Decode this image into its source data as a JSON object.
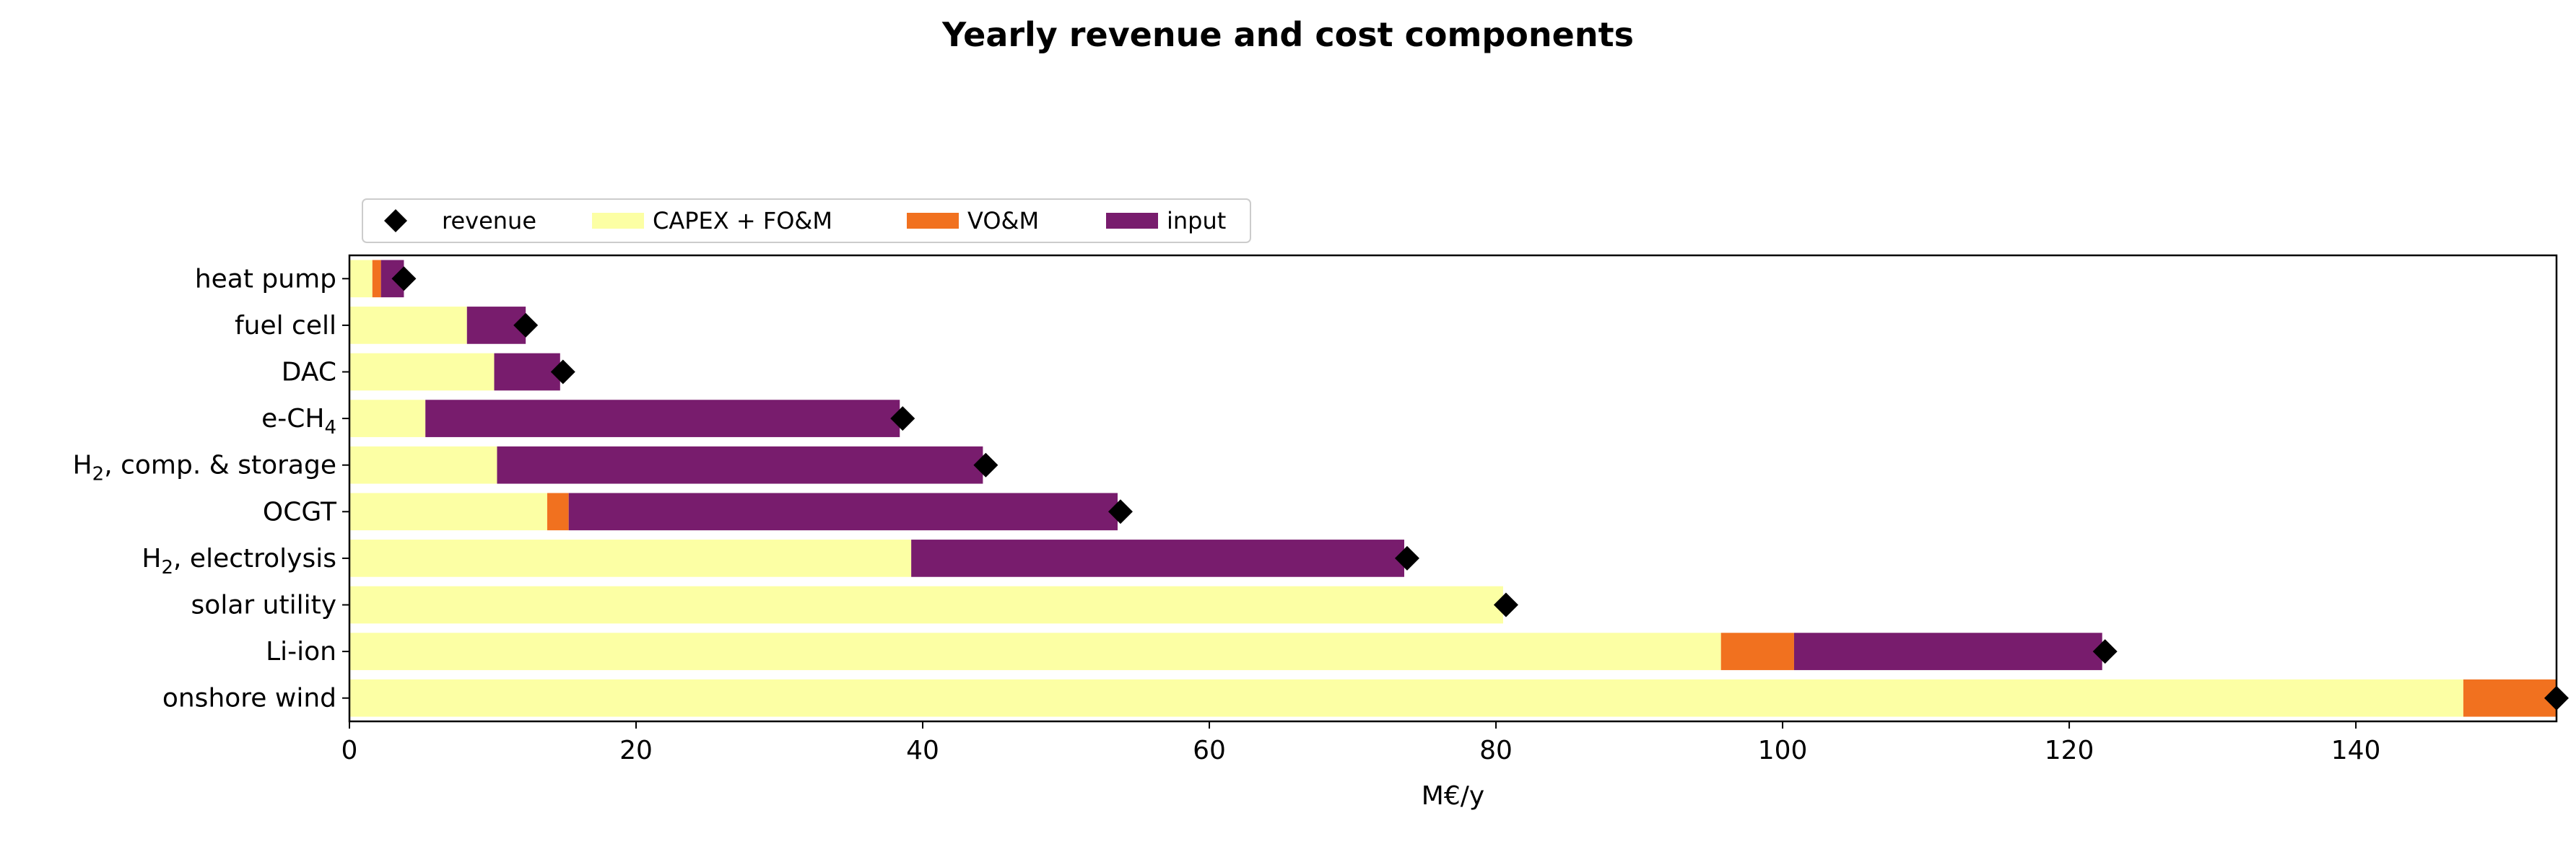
{
  "chart_data": {
    "type": "bar",
    "orientation": "horizontal",
    "stacked": true,
    "title": "Yearly revenue and cost components",
    "xlabel": "M€/y",
    "ylabel": "",
    "xlim": [
      0,
      154
    ],
    "xticks": [
      0,
      20,
      40,
      60,
      80,
      100,
      120,
      140
    ],
    "grid": false,
    "legend_position": "top-left, above plot",
    "categories": [
      "onshore wind",
      "Li-ion",
      "solar utility",
      "H2, electrolysis",
      "OCGT",
      "H2, comp. & storage",
      "e-CH4",
      "DAC",
      "fuel cell",
      "heat pump"
    ],
    "category_labels": [
      {
        "main": "onshore wind"
      },
      {
        "main": "Li-ion"
      },
      {
        "main": "solar utility"
      },
      {
        "main": "H",
        "sub": "2",
        "rest": ", electrolysis"
      },
      {
        "main": "OCGT"
      },
      {
        "main": "H",
        "sub": "2",
        "rest": ", comp. & storage"
      },
      {
        "main": "e-CH",
        "sub": "4",
        "rest": ""
      },
      {
        "main": "DAC"
      },
      {
        "main": "fuel cell"
      },
      {
        "main": "heat pump"
      }
    ],
    "series": [
      {
        "name": "CAPEX + FO&M",
        "color": "#fcffa4",
        "values": [
          147.5,
          95.7,
          80.5,
          39.2,
          13.8,
          10.3,
          5.3,
          10.1,
          8.2,
          1.6
        ]
      },
      {
        "name": "VO&M",
        "color": "#f1711f",
        "values": [
          6.5,
          5.1,
          0.0,
          0.0,
          1.5,
          0.0,
          0.0,
          0.0,
          0.0,
          0.6
        ]
      },
      {
        "name": "input",
        "color": "#781c6d",
        "values": [
          0.0,
          21.5,
          0.0,
          34.4,
          38.3,
          33.9,
          33.1,
          4.6,
          4.1,
          1.6
        ]
      }
    ],
    "markers": {
      "name": "revenue",
      "color": "#000000",
      "shape": "diamond",
      "values": [
        154.0,
        122.5,
        80.7,
        73.8,
        53.8,
        44.4,
        38.6,
        14.9,
        12.3,
        3.8
      ]
    }
  }
}
